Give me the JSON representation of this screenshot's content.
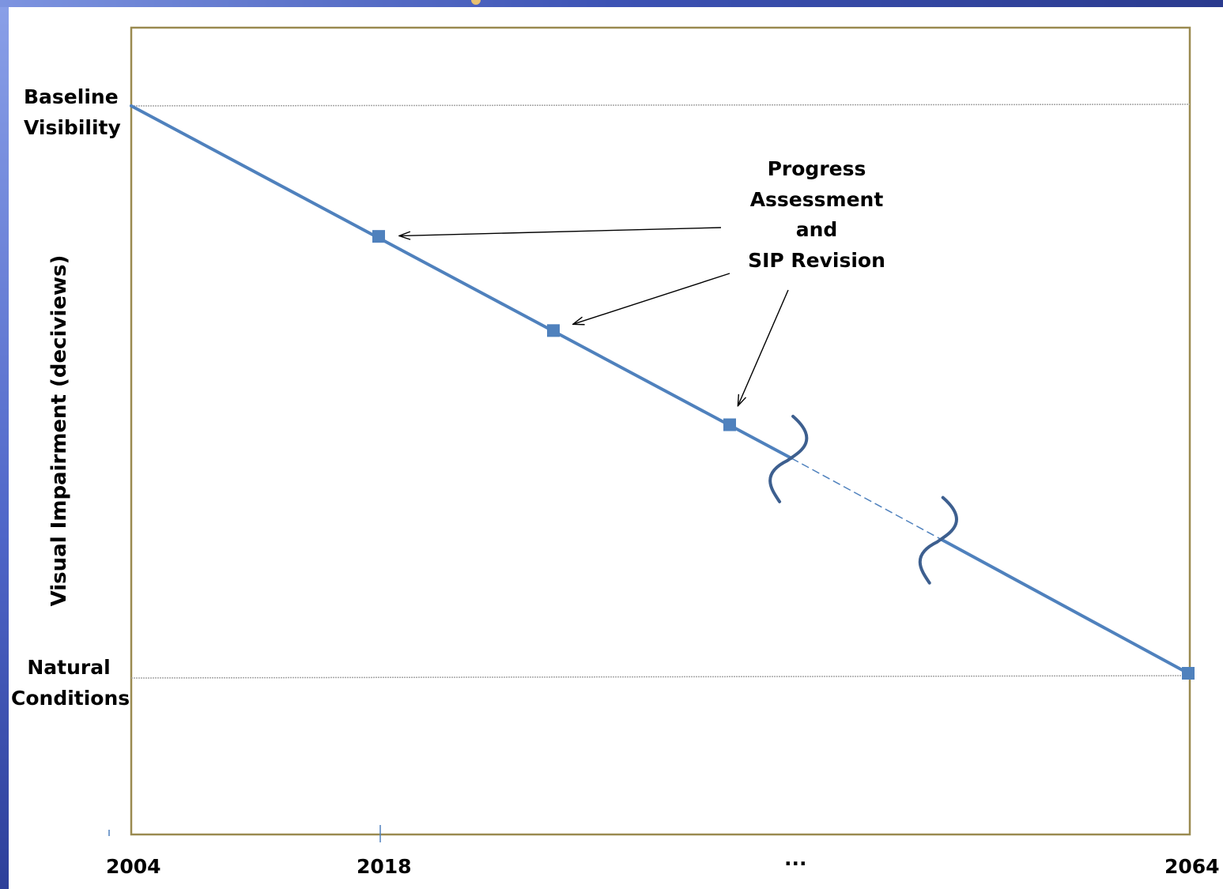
{
  "chart_data": {
    "type": "line",
    "ylabel": "Visual Impairment (deciviews)",
    "y_levels": [
      {
        "key": "baseline",
        "lines": [
          "Baseline",
          "Visibility"
        ]
      },
      {
        "key": "natural",
        "lines": [
          "Natural",
          "Conditions"
        ]
      }
    ],
    "x_tick_labels": [
      "2004",
      "2018",
      "...",
      "2064"
    ],
    "series": [
      {
        "x": [
          2004,
          2018,
          2028,
          2038,
          2064
        ],
        "y_level_fraction": [
          1.0,
          0.77,
          0.604,
          0.438,
          0.0
        ],
        "solid_until": 2041.5,
        "dashed_until": 2050,
        "markers_at": [
          2018,
          2028,
          2038,
          2064
        ]
      }
    ],
    "annotation": {
      "lines": [
        "Progress",
        "Assessment",
        "and",
        "SIP Revision"
      ],
      "points_to": [
        2018,
        2028,
        2038
      ]
    },
    "grid": false,
    "colors": {
      "line": "#4f81bd",
      "marker": "#4f81bd",
      "frame": "#9a8a50",
      "reference": "#a6a6a6",
      "break": "#3d5f8f"
    }
  }
}
